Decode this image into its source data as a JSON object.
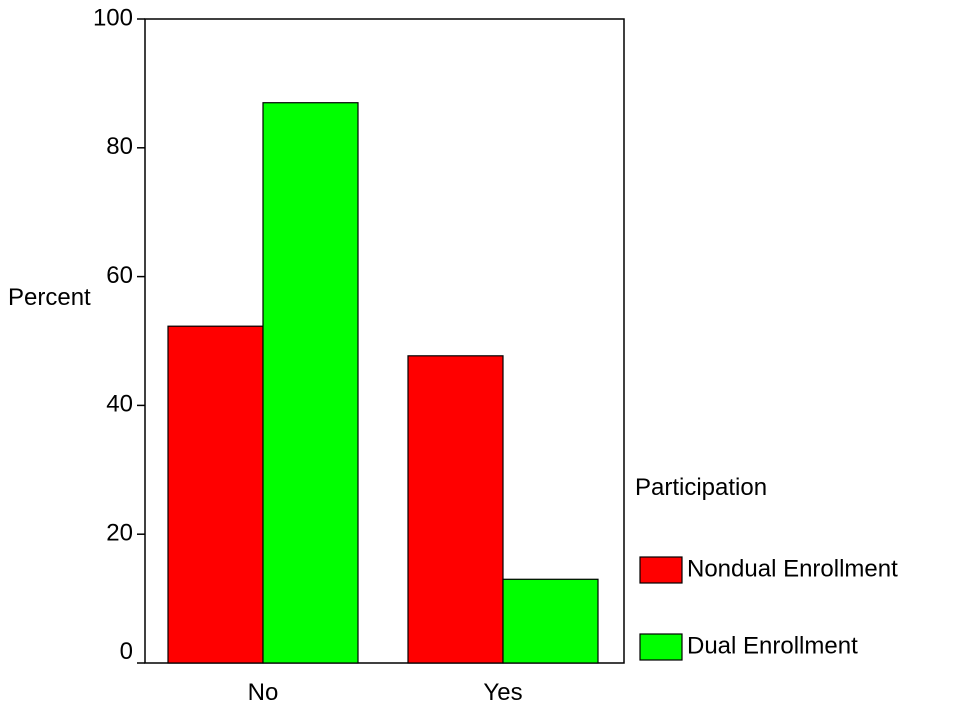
{
  "chart_data": {
    "type": "bar",
    "categories": [
      "No",
      "Yes"
    ],
    "series": [
      {
        "name": "Nondual Enrollment",
        "values": [
          52.3,
          47.7
        ],
        "color": "#ff0000"
      },
      {
        "name": "Dual Enrollment",
        "values": [
          87.0,
          13.0
        ],
        "color": "#00ff00"
      }
    ],
    "title": "",
    "xlabel": "",
    "ylabel": "Percent",
    "ylim": [
      0,
      100
    ],
    "yticks": [
      0,
      20,
      40,
      60,
      80,
      100
    ],
    "grid": false,
    "legend": {
      "title": "Participation",
      "placement": "right"
    }
  }
}
